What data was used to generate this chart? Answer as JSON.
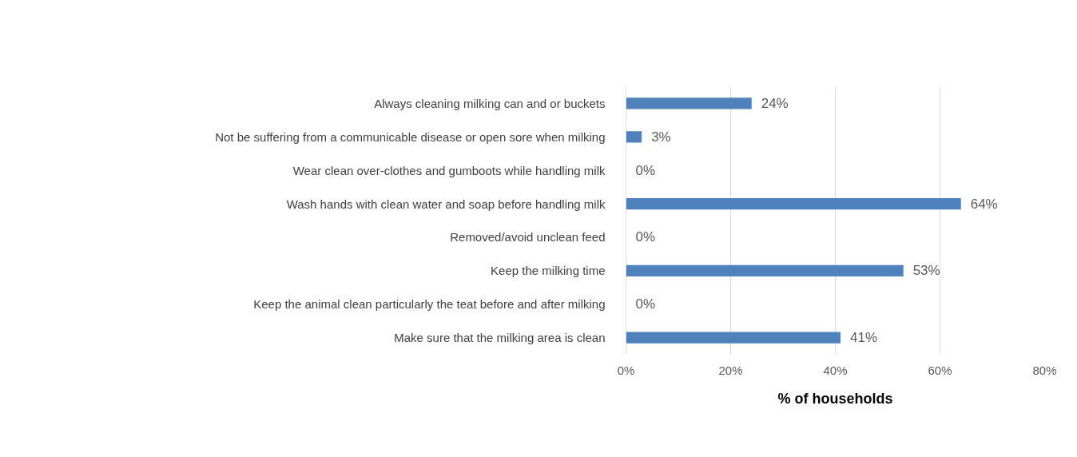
{
  "chart_data": {
    "type": "bar",
    "orientation": "horizontal",
    "xlabel": "% of households",
    "categories": [
      "Always cleaning milking can and or buckets",
      "Not be suffering from a communicable disease or open sore when milking",
      "Wear clean over-clothes and gumboots while handling milk",
      "Wash hands with clean water and soap before handling milk",
      "Removed/avoid unclean feed",
      "Keep the milking time",
      "Keep the animal clean particularly the teat before and after milking",
      "Make sure that the milking area is clean"
    ],
    "values": [
      24,
      3,
      0,
      64,
      0,
      53,
      0,
      41
    ],
    "value_labels": [
      "24%",
      "3%",
      "0%",
      "64%",
      "0%",
      "53%",
      "0%",
      "41%"
    ],
    "color": "#4f81bd",
    "xlim": [
      0,
      80
    ],
    "xticks": [
      {
        "value": 0,
        "label": "0%"
      },
      {
        "value": 20,
        "label": "20%"
      },
      {
        "value": 40,
        "label": "40%"
      },
      {
        "value": 60,
        "label": "60%"
      },
      {
        "value": 80,
        "label": "80%"
      }
    ],
    "grid": "x"
  }
}
